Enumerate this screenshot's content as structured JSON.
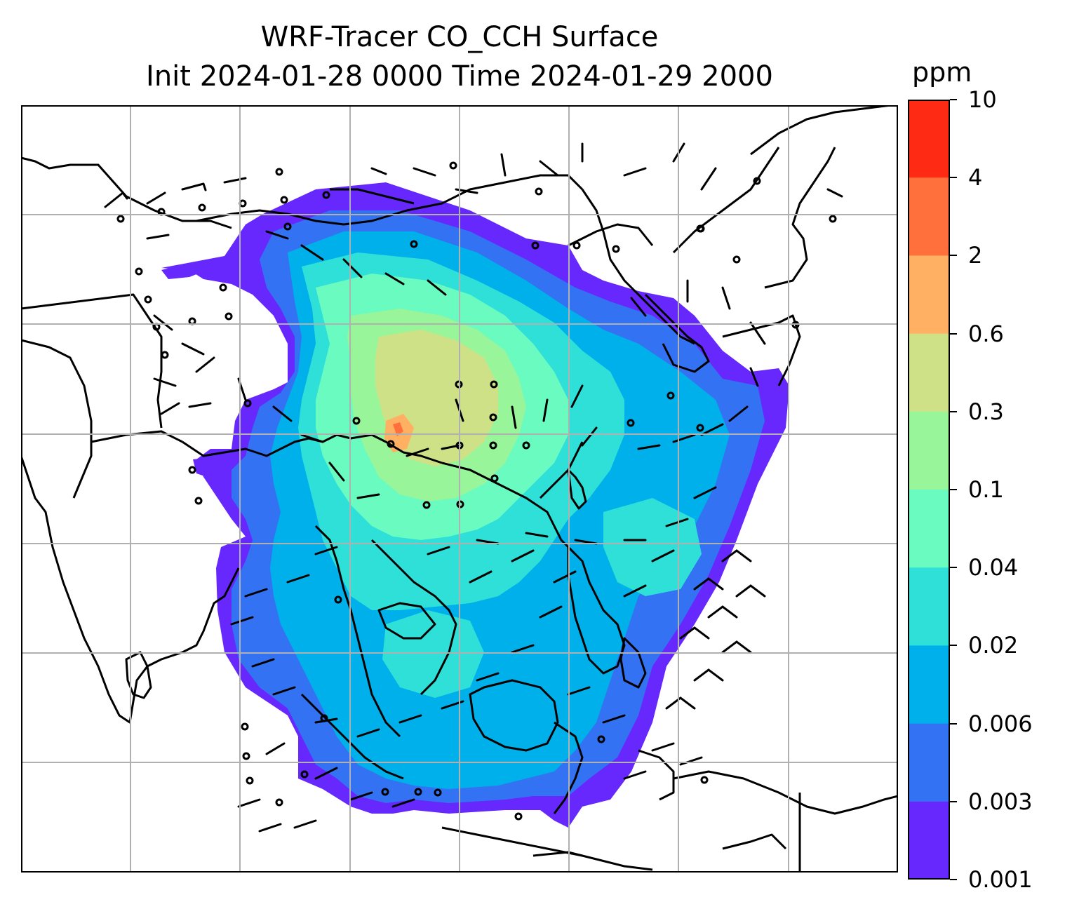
{
  "title": {
    "line1": "WRF-Tracer CO_CCH Surface",
    "line2": "Init 2024-01-28 0000 Time 2024-01-29 2000"
  },
  "colorbar": {
    "unit": "ppm",
    "ticks": [
      "10",
      "4",
      "2",
      "0.6",
      "0.3",
      "0.1",
      "0.04",
      "0.02",
      "0.006",
      "0.003",
      "0.001"
    ],
    "colors": [
      "#ff2a14",
      "#ff703c",
      "#ffb062",
      "#cfe186",
      "#99f59a",
      "#69fbc0",
      "#2ee0d8",
      "#00b0ea",
      "#3472f4",
      "#6628fc"
    ]
  },
  "map": {
    "gridlines": true,
    "gridline_color": "#b0b0b0",
    "coastline_color": "#000000"
  }
}
